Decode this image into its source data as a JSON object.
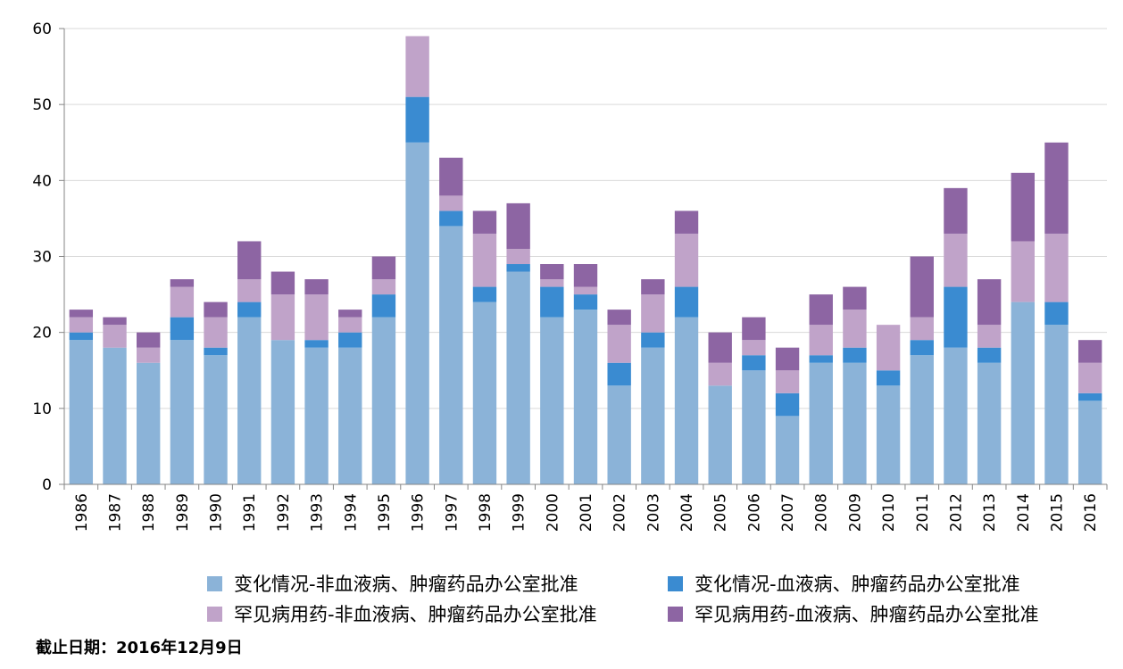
{
  "chart_data": {
    "type": "bar",
    "stacked": true,
    "categories": [
      "1986",
      "1987",
      "1988",
      "1989",
      "1990",
      "1991",
      "1992",
      "1993",
      "1994",
      "1995",
      "1996",
      "1997",
      "1998",
      "1999",
      "2000",
      "2001",
      "2002",
      "2003",
      "2004",
      "2005",
      "2006",
      "2007",
      "2008",
      "2009",
      "2010",
      "2011",
      "2012",
      "2013",
      "2014",
      "2015",
      "2016"
    ],
    "series": [
      {
        "name": "变化情况-非血液病、肿瘤药品办公室批准",
        "color": "#8bb3d8",
        "values": [
          19,
          18,
          16,
          19,
          17,
          22,
          19,
          18,
          18,
          22,
          45,
          34,
          24,
          28,
          22,
          23,
          13,
          18,
          22,
          13,
          15,
          9,
          16,
          16,
          13,
          17,
          18,
          16,
          24,
          21,
          11
        ]
      },
      {
        "name": "变化情况-血液病、肿瘤药品办公室批准",
        "color": "#3a8bd1",
        "values": [
          1,
          0,
          0,
          3,
          1,
          2,
          0,
          1,
          2,
          3,
          6,
          2,
          2,
          1,
          4,
          2,
          3,
          2,
          4,
          0,
          2,
          3,
          1,
          2,
          2,
          2,
          8,
          2,
          0,
          3,
          1
        ]
      },
      {
        "name": "罕见病用药-非血液病、肿瘤药品办公室批准",
        "color": "#c0a3c9",
        "values": [
          2,
          3,
          2,
          4,
          4,
          3,
          6,
          6,
          2,
          2,
          8,
          2,
          7,
          2,
          1,
          1,
          5,
          5,
          7,
          3,
          2,
          3,
          4,
          5,
          6,
          3,
          7,
          3,
          8,
          9,
          4
        ]
      },
      {
        "name": "罕见病用药-血液病、肿瘤药品办公室批准",
        "color": "#8d65a3",
        "values": [
          1,
          1,
          2,
          1,
          2,
          5,
          3,
          2,
          1,
          3,
          0,
          5,
          3,
          6,
          2,
          3,
          2,
          2,
          3,
          4,
          3,
          3,
          4,
          3,
          0,
          8,
          6,
          6,
          9,
          12,
          3
        ]
      }
    ],
    "ylim": [
      0,
      60
    ],
    "yticks": [
      0,
      10,
      20,
      30,
      40,
      50,
      60
    ],
    "grid": true,
    "legend_position": "bottom"
  },
  "footnote": "截止日期：2016年12月9日"
}
